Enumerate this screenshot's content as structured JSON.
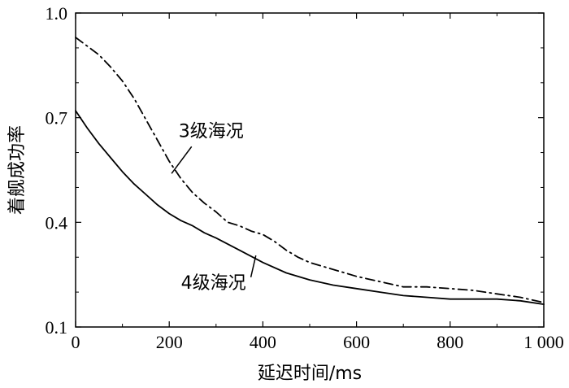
{
  "chart_data": {
    "type": "line",
    "title": "",
    "xlabel": "延迟时间/ms",
    "ylabel": "着舰成功率",
    "xlim": [
      0,
      1000
    ],
    "ylim": [
      0.1,
      1.0
    ],
    "x_ticks": [
      {
        "value": 0,
        "label": "0"
      },
      {
        "value": 200,
        "label": "200"
      },
      {
        "value": 400,
        "label": "400"
      },
      {
        "value": 600,
        "label": "600"
      },
      {
        "value": 800,
        "label": "800"
      },
      {
        "value": 1000,
        "label": "1 000"
      }
    ],
    "y_ticks": [
      {
        "value": 0.1,
        "label": "0.1"
      },
      {
        "value": 0.4,
        "label": "0.4"
      },
      {
        "value": 0.7,
        "label": "0.7"
      },
      {
        "value": 1.0,
        "label": "1.0"
      }
    ],
    "grid": false,
    "series": [
      {
        "name": "3级海况",
        "line_style": "dash-dot",
        "color": "#000000",
        "x": [
          0,
          25,
          50,
          75,
          100,
          125,
          150,
          175,
          200,
          225,
          250,
          275,
          300,
          325,
          350,
          375,
          400,
          425,
          450,
          475,
          500,
          550,
          600,
          650,
          700,
          750,
          800,
          850,
          900,
          950,
          1000
        ],
        "y": [
          0.93,
          0.905,
          0.88,
          0.845,
          0.805,
          0.755,
          0.695,
          0.635,
          0.575,
          0.525,
          0.485,
          0.455,
          0.43,
          0.4,
          0.39,
          0.375,
          0.365,
          0.345,
          0.32,
          0.3,
          0.285,
          0.265,
          0.245,
          0.23,
          0.215,
          0.215,
          0.21,
          0.205,
          0.195,
          0.185,
          0.17
        ]
      },
      {
        "name": "4级海况",
        "line_style": "solid",
        "color": "#000000",
        "x": [
          0,
          25,
          50,
          75,
          100,
          125,
          150,
          175,
          200,
          225,
          250,
          275,
          300,
          350,
          400,
          450,
          500,
          550,
          600,
          650,
          700,
          750,
          800,
          850,
          900,
          950,
          1000
        ],
        "y": [
          0.72,
          0.67,
          0.625,
          0.585,
          0.545,
          0.51,
          0.48,
          0.45,
          0.425,
          0.405,
          0.39,
          0.37,
          0.355,
          0.32,
          0.285,
          0.255,
          0.235,
          0.22,
          0.21,
          0.2,
          0.19,
          0.185,
          0.18,
          0.18,
          0.18,
          0.175,
          0.165
        ]
      }
    ],
    "annotations": [
      {
        "text": "3级海况",
        "series_index": 0,
        "at": {
          "x": 205,
          "y": 0.54
        },
        "text_at": {
          "x": 220,
          "y": 0.645
        }
      },
      {
        "text": "4级海况",
        "series_index": 1,
        "at": {
          "x": 385,
          "y": 0.305
        },
        "text_at": {
          "x": 225,
          "y": 0.21
        }
      }
    ]
  }
}
